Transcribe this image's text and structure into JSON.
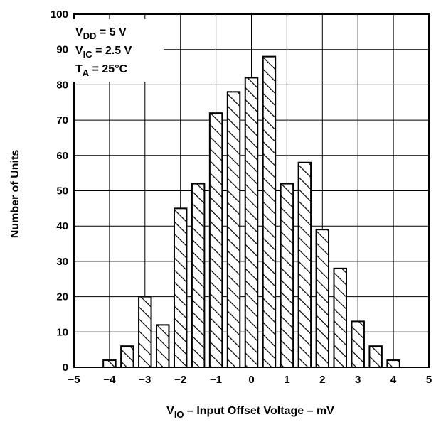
{
  "chart_data": {
    "type": "bar",
    "title": "",
    "xlabel": "V_IO – Input Offset Voltage – mV",
    "xlabel_parts": {
      "main": "V",
      "sub": "IO",
      "rest": " – Input Offset Voltage – mV"
    },
    "ylabel": "Number of Units",
    "xlim": [
      -5,
      5
    ],
    "ylim": [
      0,
      100
    ],
    "xticks": [
      -5,
      -4,
      -3,
      -2,
      -1,
      0,
      1,
      2,
      3,
      4,
      5
    ],
    "xtick_labels": [
      "−5",
      "−4",
      "−3",
      "−2",
      "−1",
      "0",
      "1",
      "2",
      "3",
      "4",
      "5"
    ],
    "yticks": [
      0,
      10,
      20,
      30,
      40,
      50,
      60,
      70,
      80,
      90,
      100
    ],
    "ytick_labels": [
      "0",
      "10",
      "20",
      "30",
      "40",
      "50",
      "60",
      "70",
      "80",
      "90",
      "100"
    ],
    "grid": true,
    "bar_fill": "diagonal-hatch",
    "bar_width": 0.35,
    "x": [
      -4,
      -3.5,
      -3,
      -2.5,
      -2,
      -1.5,
      -1,
      -0.5,
      0,
      0.5,
      1,
      1.5,
      2,
      2.5,
      3,
      3.5,
      4
    ],
    "values": [
      2,
      6,
      20,
      12,
      45,
      52,
      72,
      78,
      82,
      88,
      52,
      58,
      39,
      28,
      13,
      6,
      2
    ],
    "annotations": [
      {
        "main": "V",
        "sub": "DD",
        "rest": " = 5 V"
      },
      {
        "main": "V",
        "sub": "IC",
        "rest": " = 2.5 V"
      },
      {
        "main": "T",
        "sub": "A",
        "rest": " = 25°C"
      }
    ]
  }
}
